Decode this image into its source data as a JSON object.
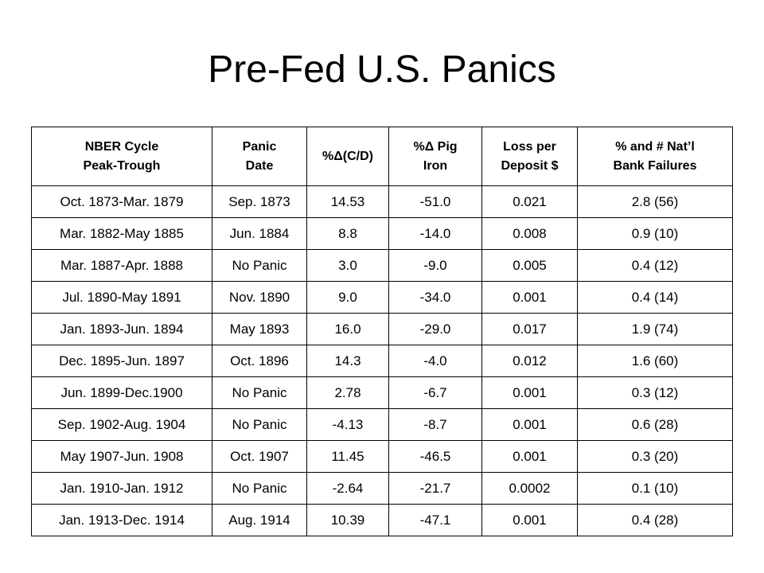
{
  "slide": {
    "title": "Pre-Fed U.S. Panics"
  },
  "table": {
    "headers": [
      {
        "line1": "NBER Cycle",
        "line2": "Peak-Trough"
      },
      {
        "line1": "Panic",
        "line2": "Date"
      },
      {
        "line1": "%Δ(C/D)",
        "line2": ""
      },
      {
        "line1": "%Δ Pig",
        "line2": "Iron"
      },
      {
        "line1": "Loss per",
        "line2": "Deposit $"
      },
      {
        "line1": "% and # Nat’l",
        "line2": "Bank Failures"
      }
    ],
    "rows": [
      [
        "Oct. 1873-Mar. 1879",
        "Sep. 1873",
        "14.53",
        "-51.0",
        "0.021",
        "2.8 (56)"
      ],
      [
        "Mar. 1882-May 1885",
        "Jun. 1884",
        "8.8",
        "-14.0",
        "0.008",
        "0.9 (10)"
      ],
      [
        "Mar. 1887-Apr. 1888",
        "No Panic",
        "3.0",
        "-9.0",
        "0.005",
        "0.4 (12)"
      ],
      [
        "Jul. 1890-May 1891",
        "Nov. 1890",
        "9.0",
        "-34.0",
        "0.001",
        "0.4 (14)"
      ],
      [
        "Jan. 1893-Jun. 1894",
        "May 1893",
        "16.0",
        "-29.0",
        "0.017",
        "1.9 (74)"
      ],
      [
        "Dec. 1895-Jun. 1897",
        "Oct. 1896",
        "14.3",
        "-4.0",
        "0.012",
        "1.6 (60)"
      ],
      [
        "Jun. 1899-Dec.1900",
        "No Panic",
        "2.78",
        "-6.7",
        "0.001",
        "0.3 (12)"
      ],
      [
        "Sep. 1902-Aug. 1904",
        "No Panic",
        "-4.13",
        "-8.7",
        "0.001",
        "0.6 (28)"
      ],
      [
        "May 1907-Jun. 1908",
        "Oct. 1907",
        "11.45",
        "-46.5",
        "0.001",
        "0.3 (20)"
      ],
      [
        "Jan. 1910-Jan. 1912",
        "No Panic",
        "-2.64",
        "-21.7",
        "0.0002",
        "0.1 (10)"
      ],
      [
        "Jan. 1913-Dec. 1914",
        "Aug. 1914",
        "10.39",
        "-47.1",
        "0.001",
        "0.4 (28)"
      ]
    ]
  }
}
